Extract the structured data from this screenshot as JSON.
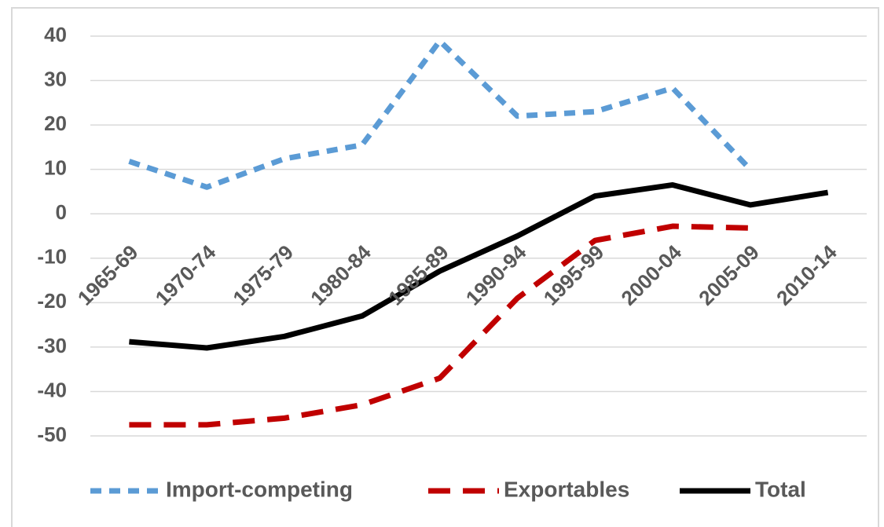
{
  "chart_data": {
    "type": "line",
    "categories": [
      "1965-69",
      "1970-74",
      "1975-79",
      "1980-84",
      "1985-89",
      "1990-94",
      "1995-99",
      "2000-04",
      "2005-09",
      "2010-14"
    ],
    "series": [
      {
        "name": "Import-competing",
        "color": "#5b9bd5",
        "line_style": "dashed",
        "values": [
          11.8,
          6,
          12.4,
          15.5,
          38.9,
          22,
          23,
          28.3,
          10,
          null
        ]
      },
      {
        "name": "Exportables",
        "color": "#c00000",
        "line_style": "dashed",
        "values": [
          -47.5,
          -47.5,
          -46,
          -43,
          -37,
          -19,
          -6,
          -2.8,
          -3.2,
          null
        ]
      },
      {
        "name": "Total",
        "color": "#000000",
        "line_style": "solid",
        "values": [
          -28.8,
          -30.2,
          -27.6,
          -23,
          -12.9,
          -5,
          4,
          6.5,
          2,
          4.8
        ]
      }
    ],
    "ylim": [
      -50,
      40
    ],
    "yticks": [
      -50,
      -40,
      -30,
      -20,
      -10,
      0,
      10,
      20,
      30,
      40
    ],
    "grid": true,
    "legend": "bottom"
  }
}
